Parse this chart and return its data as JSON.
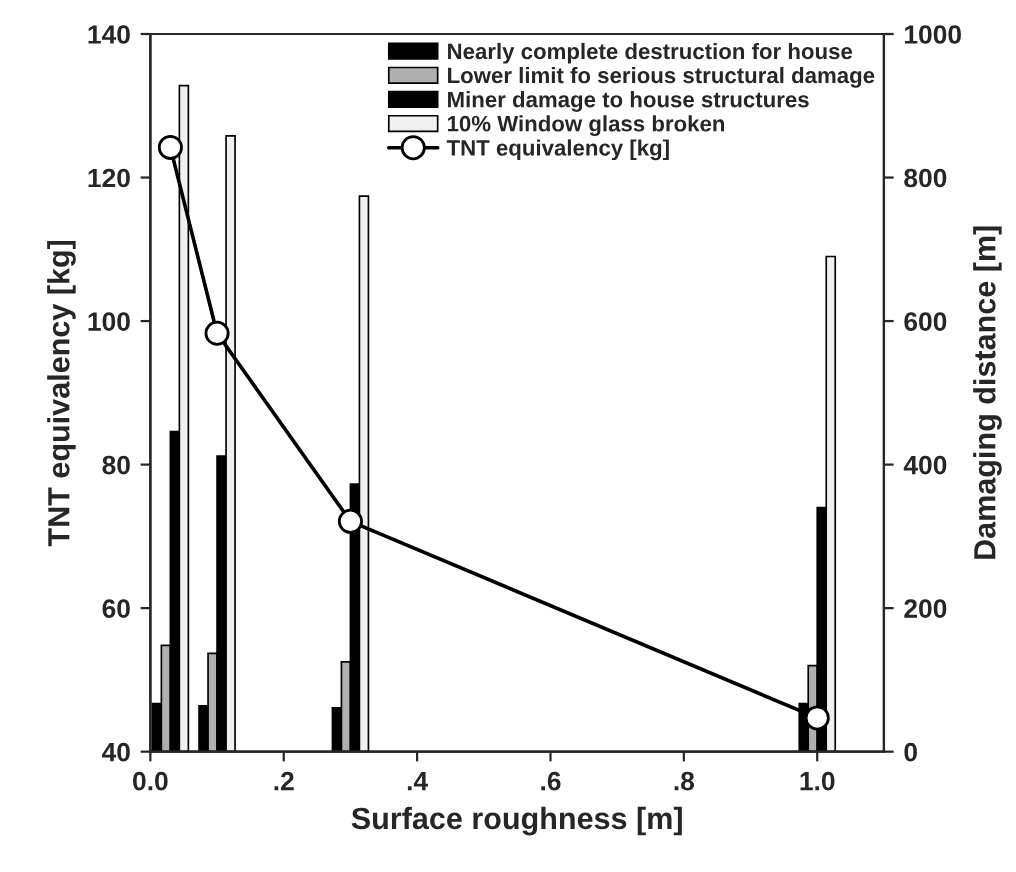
{
  "chart_data": {
    "type": "bar",
    "xlabel": "Surface roughness [m]",
    "ylabel": "TNT equivalency [kg]",
    "y2label": "Damaging distance [m]",
    "x": [
      0.03,
      0.1,
      0.3,
      1.0
    ],
    "series": [
      {
        "name": "Nearly complete destruction for house",
        "axis": "y2",
        "color": "#000000",
        "values": [
          67,
          64,
          61,
          67
        ]
      },
      {
        "name": "Lower limit fo serious structural damage",
        "axis": "y2",
        "color": "#b0b0b0",
        "values": [
          148,
          137,
          125,
          120
        ]
      },
      {
        "name": "Miner damage to house structures",
        "axis": "y2",
        "color": "#000000",
        "values": [
          446,
          412,
          373,
          340
        ]
      },
      {
        "name": "10% Window glass broken",
        "axis": "y2",
        "color": "#f0f0f0",
        "values": [
          928,
          858,
          774,
          690
        ]
      },
      {
        "name": "TNT equivalency [kg]",
        "type": "line",
        "color": "#000000",
        "marker": "circle",
        "values": [
          124.2,
          98.3,
          72.1,
          44.7
        ]
      }
    ],
    "xlim": [
      0,
      1.1
    ],
    "xticks": [
      {
        "value": 0,
        "label": "0.0"
      },
      {
        "value": 0.2,
        "label": ".2"
      },
      {
        "value": 0.4,
        "label": ".4"
      },
      {
        "value": 0.6,
        "label": ".6"
      },
      {
        "value": 0.8,
        "label": ".8"
      },
      {
        "value": 1.0,
        "label": "1.0"
      }
    ],
    "ylim": [
      40,
      140
    ],
    "yticks": [
      40,
      60,
      80,
      100,
      120,
      140
    ],
    "y2lim": [
      0,
      1000
    ],
    "y2ticks": [
      0,
      200,
      400,
      600,
      800,
      1000
    ],
    "legend": "top right",
    "grid": false
  }
}
